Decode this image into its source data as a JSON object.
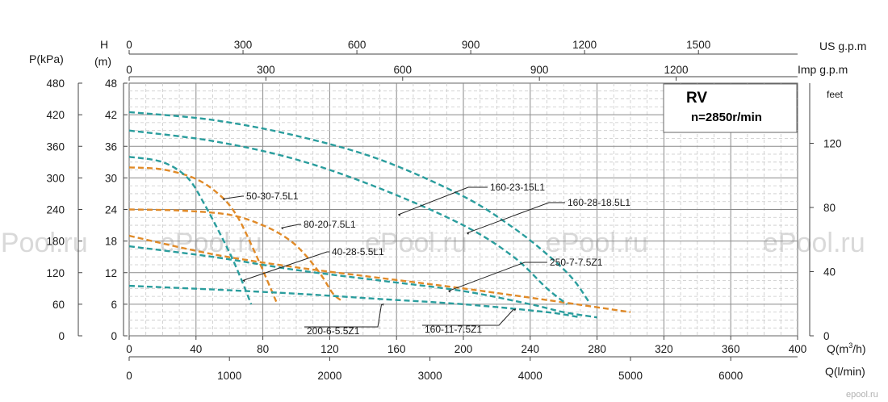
{
  "chart_data": {
    "type": "line",
    "title": "RV",
    "subtitle": "n=2850r/min",
    "x_primary": {
      "label": "Q(m3/h)",
      "label_base": "Q(m",
      "label_sup": "3",
      "label_tail": "/h)",
      "range": [
        0,
        400
      ],
      "ticks": [
        0,
        40,
        80,
        120,
        160,
        200,
        240,
        280,
        320,
        360,
        400
      ]
    },
    "x_lmin": {
      "label": "Q(l/min)",
      "ticks": [
        0,
        1000,
        2000,
        3000,
        4000,
        5000,
        6000
      ]
    },
    "x_usgpm": {
      "label": "US g.p.m",
      "ticks": [
        0,
        300,
        600,
        900,
        1200,
        1500
      ]
    },
    "x_impgpm": {
      "label": "Imp g.p.m",
      "ticks": [
        0,
        300,
        600,
        900,
        1200
      ]
    },
    "y_head": {
      "label_line1": "H",
      "label_line2": "(m)",
      "range": [
        0,
        48
      ],
      "ticks": [
        0,
        6,
        12,
        18,
        24,
        30,
        36,
        42,
        48
      ]
    },
    "y_pressure": {
      "label": "P(kPa)",
      "ticks": [
        0,
        60,
        120,
        180,
        240,
        300,
        360,
        420,
        480
      ]
    },
    "y_feet": {
      "label": "feet",
      "ticks": [
        0,
        40,
        80,
        120
      ]
    },
    "grid": true,
    "watermarks": [
      "ePool.ru",
      "ePool.ru",
      "ePool.ru",
      "ePool.ru",
      "ePool.ru"
    ],
    "corner_mark": "epool.ru",
    "colors": {
      "teal": "#2a9d9d",
      "orange": "#e08a28"
    },
    "series": [
      {
        "name": "50-30-7.5L1",
        "color": "orange",
        "points": [
          [
            0,
            32
          ],
          [
            20,
            31.6
          ],
          [
            40,
            29.8
          ],
          [
            55,
            26.5
          ],
          [
            65,
            22.5
          ],
          [
            75,
            16
          ],
          [
            82,
            11
          ],
          [
            88,
            6.5
          ]
        ]
      },
      {
        "name": "80-20-7.5L1",
        "color": "orange",
        "points": [
          [
            0,
            24
          ],
          [
            30,
            23.8
          ],
          [
            60,
            23
          ],
          [
            80,
            21
          ],
          [
            95,
            18.4
          ],
          [
            105,
            15.5
          ],
          [
            115,
            11.5
          ],
          [
            122,
            8
          ],
          [
            128,
            6.5
          ]
        ]
      },
      {
        "name": "250-7-7.5Z1",
        "color": "orange",
        "points": [
          [
            0,
            19
          ],
          [
            50,
            15.5
          ],
          [
            100,
            13
          ],
          [
            150,
            11
          ],
          [
            200,
            9
          ],
          [
            250,
            6.8
          ],
          [
            300,
            4.5
          ]
        ]
      },
      {
        "name": "40-28-5.5L1",
        "color": "teal",
        "points": [
          [
            0,
            34
          ],
          [
            20,
            33
          ],
          [
            35,
            30
          ],
          [
            45,
            25
          ],
          [
            55,
            19
          ],
          [
            62,
            14.5
          ],
          [
            68,
            10
          ],
          [
            73,
            6
          ]
        ]
      },
      {
        "name": "160-23-15L1",
        "color": "teal",
        "points": [
          [
            0,
            39
          ],
          [
            50,
            37
          ],
          [
            100,
            33.5
          ],
          [
            150,
            28
          ],
          [
            200,
            21
          ],
          [
            230,
            15
          ],
          [
            250,
            9
          ],
          [
            262,
            6
          ]
        ]
      },
      {
        "name": "160-28-18.5L1",
        "color": "teal",
        "points": [
          [
            0,
            42.5
          ],
          [
            50,
            41
          ],
          [
            100,
            38
          ],
          [
            150,
            33.5
          ],
          [
            200,
            26.5
          ],
          [
            230,
            20.5
          ],
          [
            250,
            15.5
          ],
          [
            265,
            11
          ],
          [
            275,
            6.5
          ]
        ]
      },
      {
        "name": "160-11-7.5Z1",
        "color": "teal",
        "points": [
          [
            0,
            17
          ],
          [
            50,
            15
          ],
          [
            100,
            12.5
          ],
          [
            150,
            10.5
          ],
          [
            200,
            8.5
          ],
          [
            240,
            6
          ],
          [
            260,
            4.5
          ],
          [
            280,
            3.5
          ]
        ]
      },
      {
        "name": "200-6-5.5Z1",
        "color": "teal",
        "points": [
          [
            0,
            9.5
          ],
          [
            50,
            8.8
          ],
          [
            100,
            8
          ],
          [
            150,
            7
          ],
          [
            200,
            6
          ],
          [
            250,
            4.5
          ],
          [
            270,
            3.5
          ]
        ]
      }
    ],
    "annotations": [
      {
        "series": "160-23-15L1",
        "text": "160-23-15L1",
        "at": [
          161,
          23
        ]
      },
      {
        "series": "160-28-18.5L1",
        "text": "160-28-18.5L1",
        "at": [
          202,
          19.5
        ]
      },
      {
        "series": "50-30-7.5L1",
        "text": "50-30-7.5L1",
        "at": [
          56,
          26
        ]
      },
      {
        "series": "80-20-7.5L1",
        "text": "80-20-7.5L1",
        "at": [
          91,
          20.5
        ]
      },
      {
        "series": "40-28-5.5L1",
        "text": "40-28-5.5L1",
        "at": [
          68,
          10.5
        ]
      },
      {
        "series": "250-7-7.5Z1",
        "text": "250-7-7.5Z1",
        "at": [
          191,
          8.5
        ]
      },
      {
        "series": "200-6-5.5Z1",
        "text": "200-6-5.5Z1",
        "at": [
          151,
          6
        ]
      },
      {
        "series": "160-11-7.5Z1",
        "text": "160-11-7.5Z1",
        "at": [
          230,
          5
        ]
      }
    ]
  }
}
